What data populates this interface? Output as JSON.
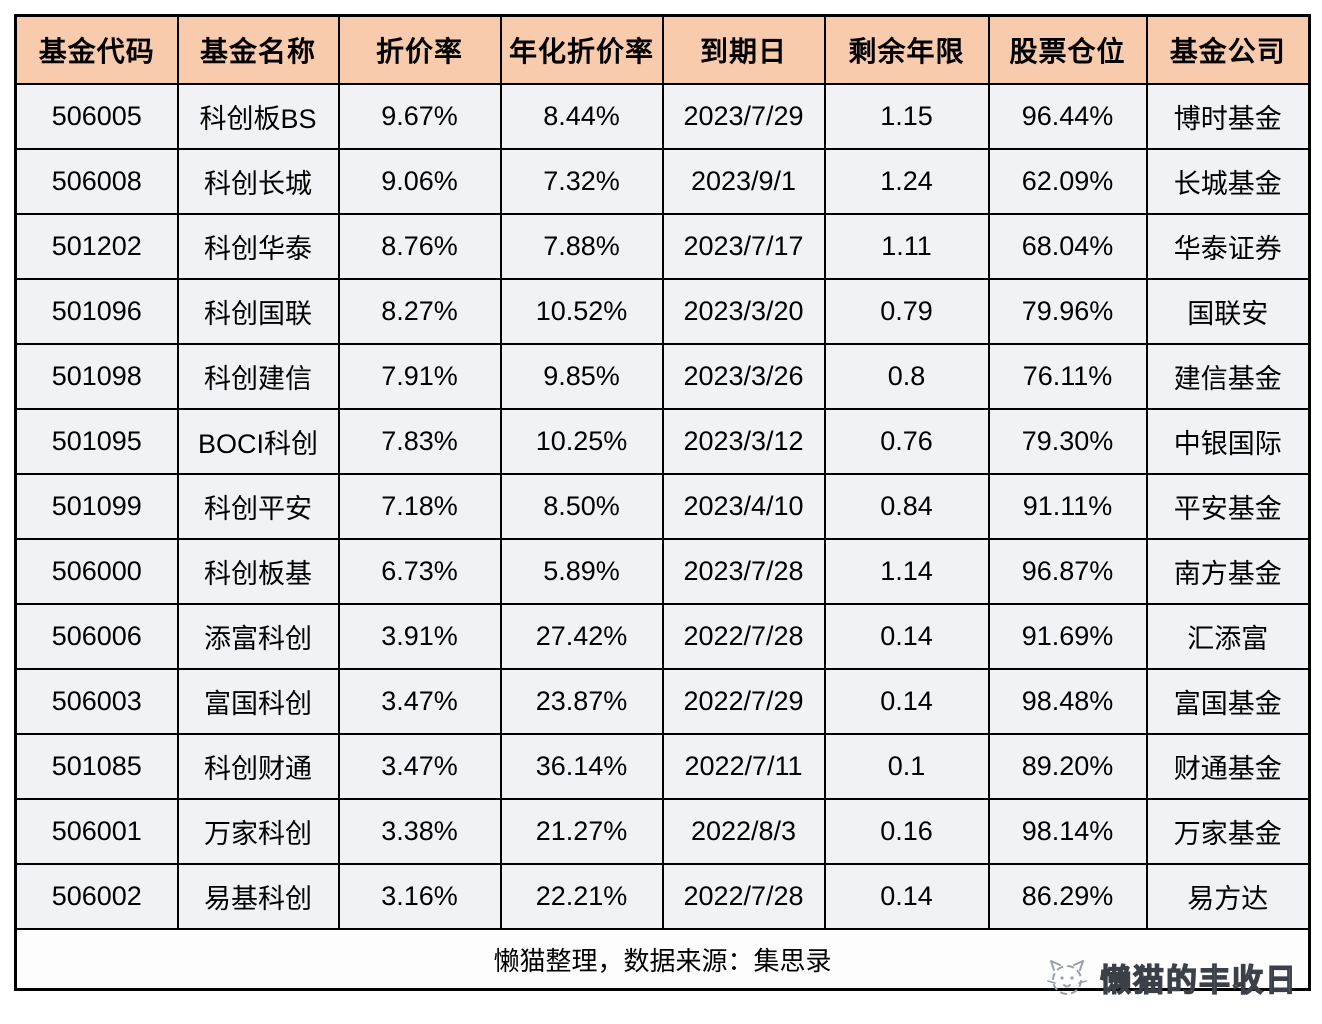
{
  "colors": {
    "header_bg": "#f8cbad",
    "row_bg": "#f1f2f6",
    "border": "#000000",
    "page_bg": "#ffffff",
    "watermark_text": "#ffffff"
  },
  "chart_data": {
    "type": "table",
    "column_keys": [
      "code",
      "name",
      "discount-rate",
      "annualized-discount-rate",
      "maturity-date",
      "remaining-years",
      "stock-position",
      "company"
    ],
    "columns": [
      "基金代码",
      "基金名称",
      "折价率",
      "年化折价率",
      "到期日",
      "剩余年限",
      "股票仓位",
      "基金公司"
    ],
    "rows": [
      [
        "506005",
        "科创板BS",
        "9.67%",
        "8.44%",
        "2023/7/29",
        "1.15",
        "96.44%",
        "博时基金"
      ],
      [
        "506008",
        "科创长城",
        "9.06%",
        "7.32%",
        "2023/9/1",
        "1.24",
        "62.09%",
        "长城基金"
      ],
      [
        "501202",
        "科创华泰",
        "8.76%",
        "7.88%",
        "2023/7/17",
        "1.11",
        "68.04%",
        "华泰证券"
      ],
      [
        "501096",
        "科创国联",
        "8.27%",
        "10.52%",
        "2023/3/20",
        "0.79",
        "79.96%",
        "国联安"
      ],
      [
        "501098",
        "科创建信",
        "7.91%",
        "9.85%",
        "2023/3/26",
        "0.8",
        "76.11%",
        "建信基金"
      ],
      [
        "501095",
        "BOCI科创",
        "7.83%",
        "10.25%",
        "2023/3/12",
        "0.76",
        "79.30%",
        "中银国际"
      ],
      [
        "501099",
        "科创平安",
        "7.18%",
        "8.50%",
        "2023/4/10",
        "0.84",
        "91.11%",
        "平安基金"
      ],
      [
        "506000",
        "科创板基",
        "6.73%",
        "5.89%",
        "2023/7/28",
        "1.14",
        "96.87%",
        "南方基金"
      ],
      [
        "506006",
        "添富科创",
        "3.91%",
        "27.42%",
        "2022/7/28",
        "0.14",
        "91.69%",
        "汇添富"
      ],
      [
        "506003",
        "富国科创",
        "3.47%",
        "23.87%",
        "2022/7/29",
        "0.14",
        "98.48%",
        "富国基金"
      ],
      [
        "501085",
        "科创财通",
        "3.47%",
        "36.14%",
        "2022/7/11",
        "0.1",
        "89.20%",
        "财通基金"
      ],
      [
        "506001",
        "万家科创",
        "3.38%",
        "21.27%",
        "2022/8/3",
        "0.16",
        "98.14%",
        "万家基金"
      ],
      [
        "506002",
        "易基科创",
        "3.16%",
        "22.21%",
        "2022/7/28",
        "0.14",
        "86.29%",
        "易方达"
      ]
    ],
    "footer_note": "懒猫整理，数据来源：集思录"
  },
  "watermark": {
    "brand": "懒猫的丰收日",
    "icon": "cat-icon"
  }
}
